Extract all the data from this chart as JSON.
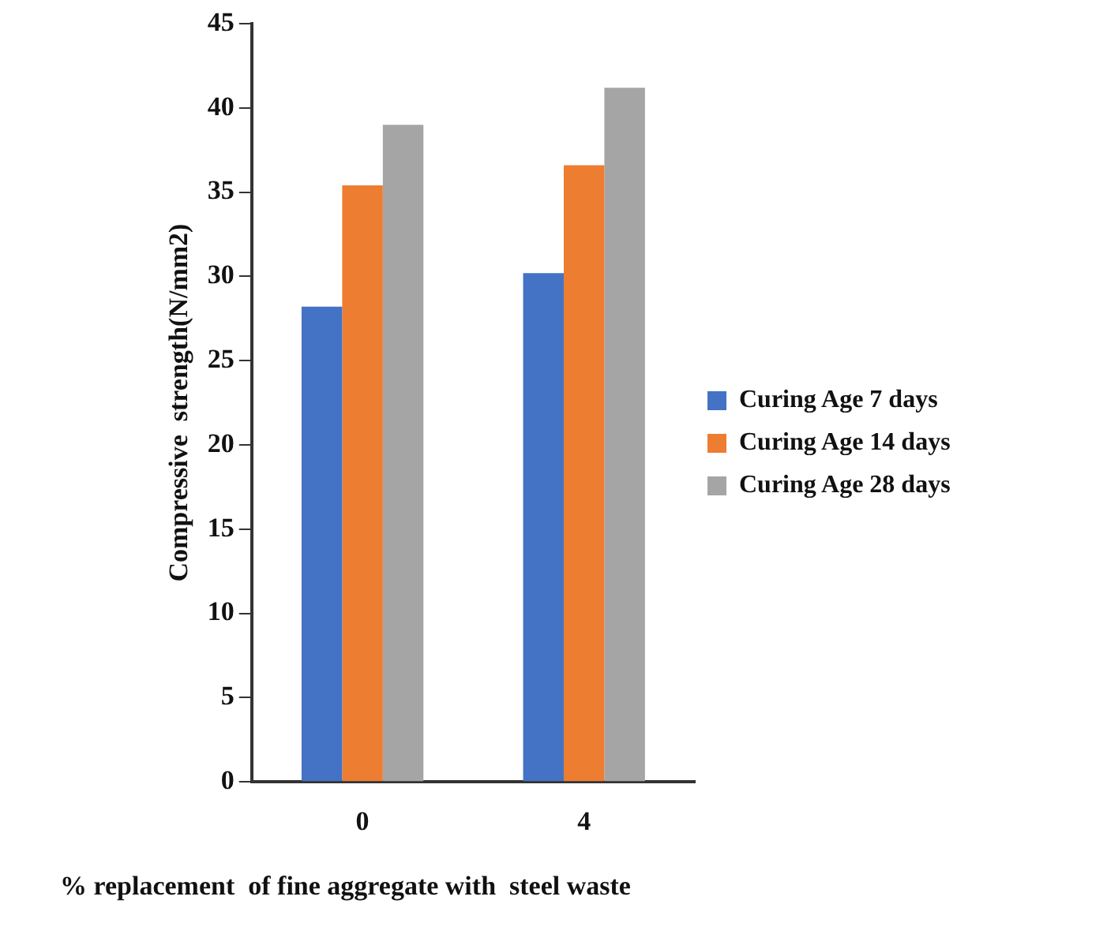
{
  "chart_data": {
    "type": "bar",
    "xlabel": "% replacement  of fine aggregate with  steel waste",
    "ylabel": "Compressive  strength(N/mm2)",
    "categories": [
      "0",
      "4"
    ],
    "series": [
      {
        "name": "Curing Age 7 days",
        "color": "#4472c4",
        "values": [
          28.2,
          30.2
        ]
      },
      {
        "name": "Curing Age 14 days",
        "color": "#ed7d31",
        "values": [
          35.4,
          36.6
        ]
      },
      {
        "name": "Curing Age 28 days",
        "color": "#a5a5a5",
        "values": [
          39.0,
          41.2
        ]
      }
    ],
    "ylim": [
      0,
      45
    ],
    "yticks": [
      0,
      5,
      10,
      15,
      20,
      25,
      30,
      35,
      40,
      45
    ],
    "grid": false,
    "legend": "right"
  }
}
